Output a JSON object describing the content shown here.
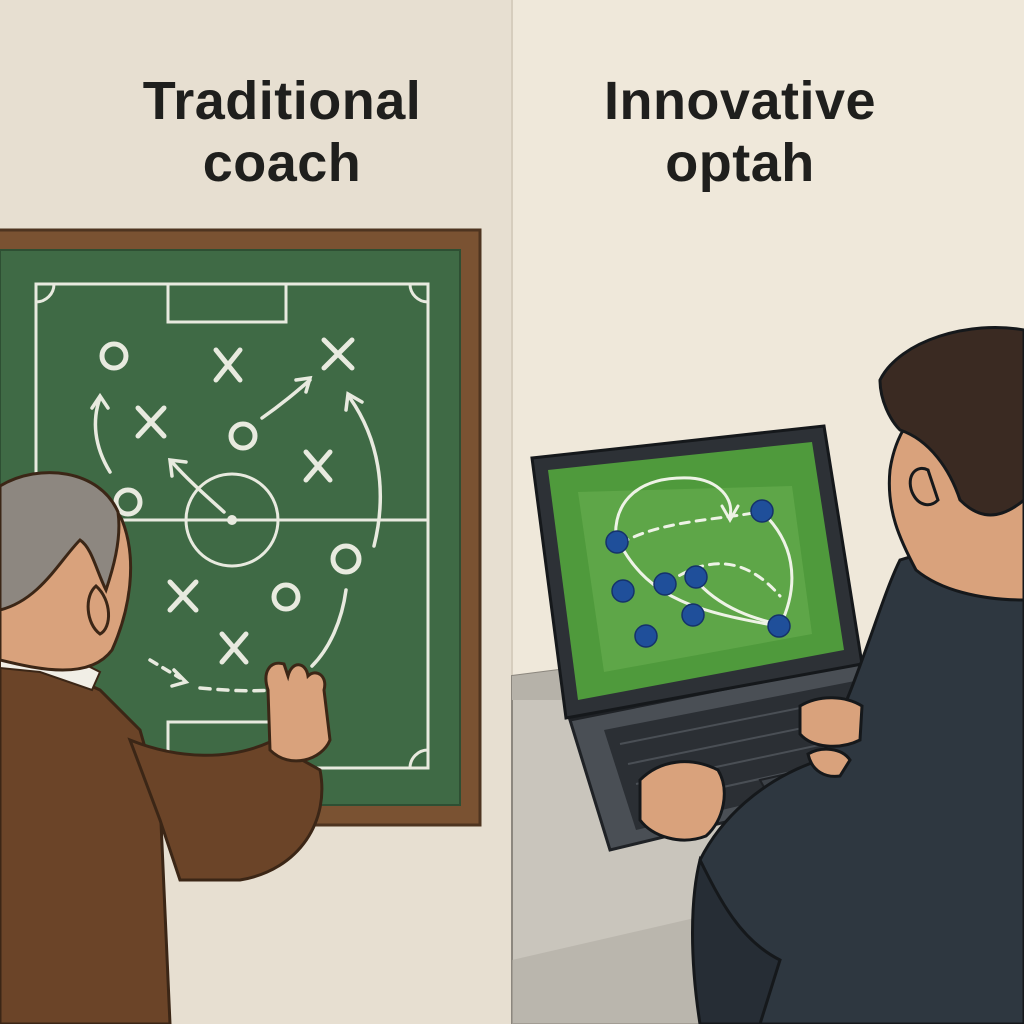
{
  "left_panel": {
    "title_line1": "Traditional",
    "title_line2": "coach",
    "board_color": "#3f6a45",
    "frame_color": "#7a5232"
  },
  "right_panel": {
    "title_line1": "Innovative",
    "title_line2": "optah",
    "screen_color": "#4f9a3c",
    "player_dot_color": "#1f4f9a"
  },
  "icons": {
    "left_figure": "coach-figure-icon",
    "right_figure": "analyst-figure-icon",
    "laptop": "laptop-icon",
    "chalkboard": "chalkboard-icon"
  }
}
